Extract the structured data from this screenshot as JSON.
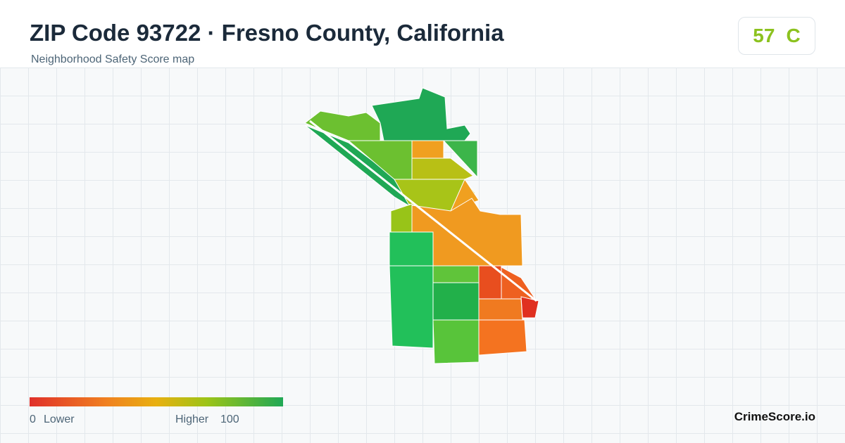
{
  "header": {
    "title": "ZIP Code 93722 · Fresno County, California",
    "subtitle": "Neighborhood Safety Score map"
  },
  "score": {
    "value": "57",
    "grade": "C"
  },
  "legend": {
    "min": "0",
    "min_label": "Lower",
    "max_label": "Higher",
    "max": "100"
  },
  "brand": "CrimeScore.io"
}
